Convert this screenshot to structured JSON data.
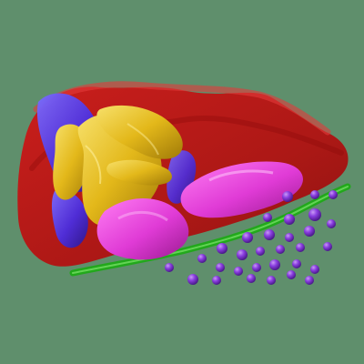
{
  "scene": {
    "background_color": "#5f8f6c",
    "structures": [
      {
        "name": "red-membrane",
        "color": "#c81212"
      },
      {
        "name": "green-membrane",
        "color": "#22a81c"
      },
      {
        "name": "blue-structure",
        "color": "#4a2ee0"
      },
      {
        "name": "yellow-structure",
        "color": "#e8c21a"
      },
      {
        "name": "magenta-structure",
        "color": "#e23ad8"
      },
      {
        "name": "purple-vesicles",
        "color": "#7a2fd0"
      }
    ]
  }
}
